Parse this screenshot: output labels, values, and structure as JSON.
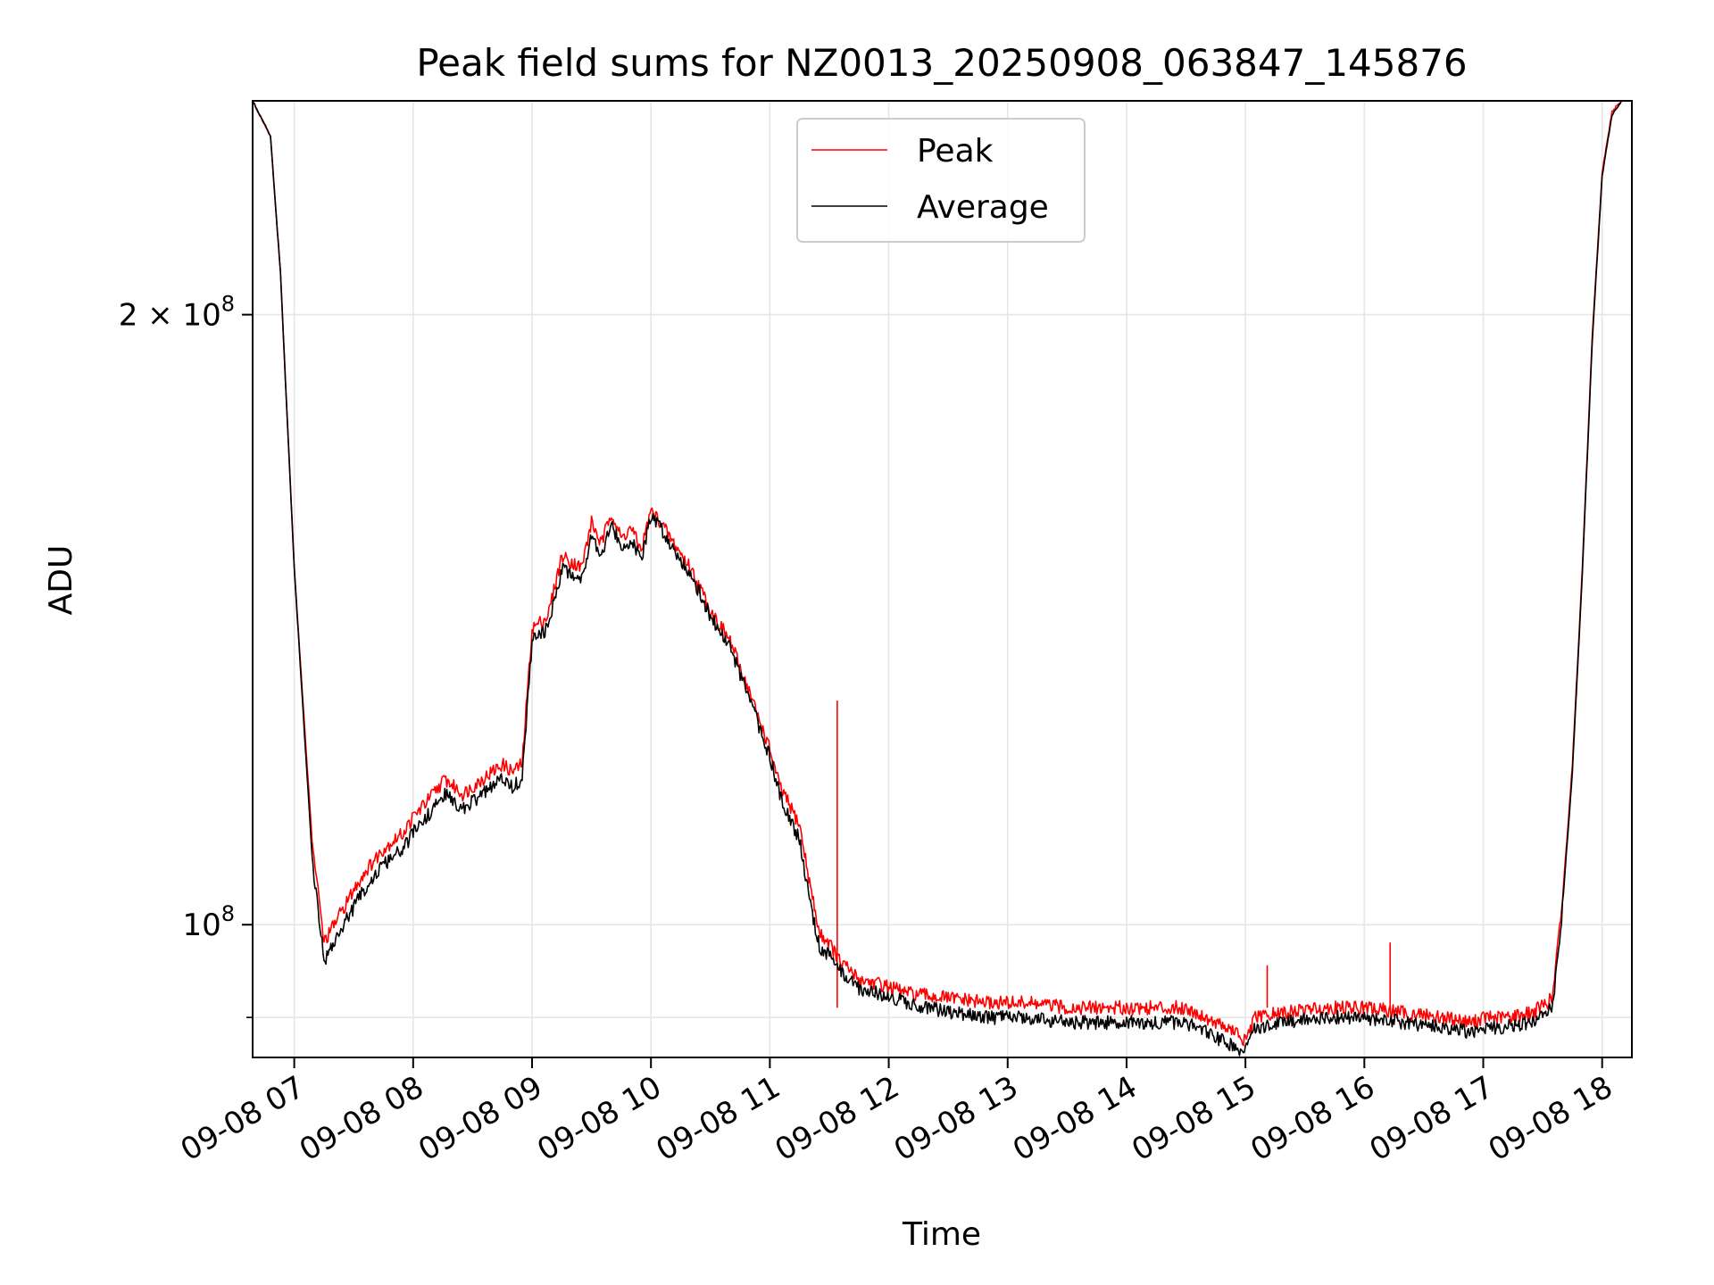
{
  "chart_data": {
    "type": "line",
    "title": "Peak field sums for NZ0013_20250908_063847_145876",
    "xlabel": "Time",
    "ylabel": "ADU",
    "yscale": "log",
    "xlim": [
      "09-08 06:39",
      "09-08 18:15"
    ],
    "ylim": [
      86000000,
      255000000
    ],
    "grid": true,
    "legend_position": "top-center",
    "x_ticks": [
      "09-08 07",
      "09-08 08",
      "09-08 09",
      "09-08 10",
      "09-08 11",
      "09-08 12",
      "09-08 13",
      "09-08 14",
      "09-08 15",
      "09-08 16",
      "09-08 17",
      "09-08 18"
    ],
    "y_ticks": [
      {
        "value": 200000000,
        "base": "2 × 10",
        "exp": "8"
      },
      {
        "value": 100000000,
        "base": "10",
        "exp": "8"
      }
    ],
    "series": [
      {
        "name": "Peak",
        "color": "#ff0000",
        "x": [
          "09-08 06:39",
          "09-08 06:48",
          "09-08 06:53",
          "09-08 07:00",
          "09-08 07:09",
          "09-08 07:15",
          "09-08 07:25",
          "09-08 07:35",
          "09-08 07:45",
          "09-08 07:55",
          "09-08 08:00",
          "09-08 08:10",
          "09-08 08:16",
          "09-08 08:25",
          "09-08 08:35",
          "09-08 08:45",
          "09-08 08:50",
          "09-08 08:55",
          "09-08 09:00",
          "09-08 09:08",
          "09-08 09:15",
          "09-08 09:25",
          "09-08 09:30",
          "09-08 09:35",
          "09-08 09:40",
          "09-08 09:45",
          "09-08 09:50",
          "09-08 09:55",
          "09-08 10:00",
          "09-08 10:05",
          "09-08 10:10",
          "09-08 10:20",
          "09-08 10:30",
          "09-08 10:40",
          "09-08 10:50",
          "09-08 11:00",
          "09-08 11:05",
          "09-08 11:15",
          "09-08 11:20",
          "09-08 11:25",
          "09-08 11:30",
          "09-08 11:35",
          "09-08 11:40",
          "09-08 11:45",
          "09-08 11:55",
          "09-08 12:10",
          "09-08 12:30",
          "09-08 12:50",
          "09-08 13:10",
          "09-08 13:30",
          "09-08 14:00",
          "09-08 14:30",
          "09-08 14:55",
          "09-08 15:00",
          "09-08 15:05",
          "09-08 15:20",
          "09-08 15:40",
          "09-08 16:00",
          "09-08 16:20",
          "09-08 16:40",
          "09-08 16:55",
          "09-08 17:00",
          "09-08 17:10",
          "09-08 17:25",
          "09-08 17:35",
          "09-08 17:40",
          "09-08 17:45",
          "09-08 17:50",
          "09-08 17:55",
          "09-08 18:00",
          "09-08 18:05",
          "09-08 18:10"
        ],
        "values": [
          255000000,
          245000000,
          210000000,
          150000000,
          110000000,
          98000000,
          102000000,
          106000000,
          109000000,
          111000000,
          113000000,
          116000000,
          118000000,
          116000000,
          118000000,
          120000000,
          119000000,
          120000000,
          140000000,
          142000000,
          152000000,
          150000000,
          158000000,
          154000000,
          160000000,
          155000000,
          157000000,
          153000000,
          160000000,
          158000000,
          155000000,
          150000000,
          143000000,
          138000000,
          130000000,
          122000000,
          117000000,
          112000000,
          105000000,
          99000000,
          98000000,
          96000000,
          95000000,
          94000000,
          93500000,
          92500000,
          92000000,
          91500000,
          91500000,
          91000000,
          91000000,
          91000000,
          88500000,
          87500000,
          90000000,
          90500000,
          91000000,
          91000000,
          90500000,
          90000000,
          89500000,
          90000000,
          90000000,
          90500000,
          92000000,
          103000000,
          120000000,
          150000000,
          195000000,
          235000000,
          252000000,
          255000000
        ],
        "spikes": [
          {
            "x": "09-08 11:34",
            "value": 129000000
          },
          {
            "x": "09-08 15:11",
            "value": 95500000
          },
          {
            "x": "09-08 16:13",
            "value": 98000000
          }
        ]
      },
      {
        "name": "Average",
        "color": "#000000",
        "x": [
          "09-08 06:39",
          "09-08 06:48",
          "09-08 06:53",
          "09-08 07:00",
          "09-08 07:09",
          "09-08 07:15",
          "09-08 07:25",
          "09-08 07:35",
          "09-08 07:45",
          "09-08 07:55",
          "09-08 08:00",
          "09-08 08:10",
          "09-08 08:16",
          "09-08 08:25",
          "09-08 08:35",
          "09-08 08:45",
          "09-08 08:50",
          "09-08 08:55",
          "09-08 09:00",
          "09-08 09:08",
          "09-08 09:15",
          "09-08 09:25",
          "09-08 09:30",
          "09-08 09:35",
          "09-08 09:40",
          "09-08 09:45",
          "09-08 09:50",
          "09-08 09:55",
          "09-08 10:00",
          "09-08 10:05",
          "09-08 10:10",
          "09-08 10:20",
          "09-08 10:30",
          "09-08 10:40",
          "09-08 10:50",
          "09-08 11:00",
          "09-08 11:05",
          "09-08 11:15",
          "09-08 11:20",
          "09-08 11:25",
          "09-08 11:30",
          "09-08 11:35",
          "09-08 11:40",
          "09-08 11:45",
          "09-08 11:55",
          "09-08 12:10",
          "09-08 12:30",
          "09-08 12:50",
          "09-08 13:10",
          "09-08 13:30",
          "09-08 14:00",
          "09-08 14:30",
          "09-08 14:55",
          "09-08 15:00",
          "09-08 15:05",
          "09-08 15:20",
          "09-08 15:40",
          "09-08 16:00",
          "09-08 16:20",
          "09-08 16:40",
          "09-08 16:55",
          "09-08 17:00",
          "09-08 17:10",
          "09-08 17:25",
          "09-08 17:35",
          "09-08 17:40",
          "09-08 17:45",
          "09-08 17:50",
          "09-08 17:55",
          "09-08 18:00",
          "09-08 18:05",
          "09-08 18:10"
        ],
        "values": [
          255000000,
          245000000,
          210000000,
          150000000,
          108000000,
          96000000,
          100000000,
          104000000,
          107000000,
          109000000,
          111000000,
          114000000,
          116000000,
          114000000,
          116000000,
          118000000,
          117000000,
          118000000,
          138000000,
          140000000,
          150000000,
          148000000,
          156000000,
          152000000,
          158000000,
          153000000,
          155000000,
          151000000,
          159000000,
          157000000,
          154000000,
          149000000,
          142000000,
          137000000,
          129000000,
          121000000,
          116000000,
          110000000,
          103000000,
          97500000,
          96500000,
          95000000,
          94000000,
          93000000,
          92500000,
          91500000,
          90500000,
          90000000,
          90000000,
          89500000,
          89500000,
          89500000,
          87000000,
          86500000,
          89000000,
          89500000,
          90000000,
          90000000,
          89500000,
          89000000,
          88500000,
          89000000,
          89000000,
          89500000,
          91000000,
          102000000,
          119000000,
          149000000,
          194000000,
          234000000,
          251000000,
          255000000
        ]
      }
    ]
  }
}
